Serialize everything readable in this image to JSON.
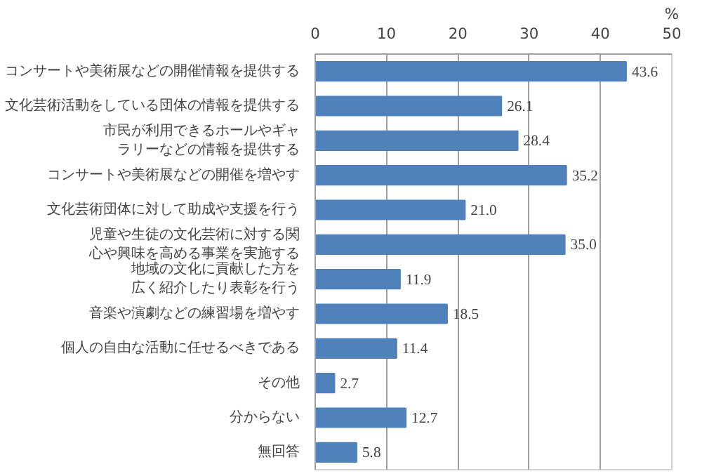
{
  "chart_data": {
    "type": "bar",
    "orientation": "horizontal",
    "xlabel": "%",
    "categories": [
      "コンサートや美術展などの開催情報を提供する",
      "文化芸術活動をしている団体の情報を提供する",
      "市民が利用できるホールやギャラリーなどの情報を提供する",
      "コンサートや美術展などの開催を増やす",
      "文化芸術団体に対して助成や支援を行う",
      "児童や生徒の文化芸術に対する関心や興味を高める事業を実施する",
      "地域の文化に貢献した方を広く紹介したり表彰を行う",
      "音楽や演劇などの練習場を増やす",
      "個人の自由な活動に任せるべきである",
      "その他",
      "分からない",
      "無回答"
    ],
    "values": [
      43.6,
      26.1,
      28.4,
      35.2,
      21.0,
      35.0,
      11.9,
      18.5,
      11.4,
      2.7,
      12.7,
      5.8
    ],
    "value_labels": [
      "43.6",
      "26.1",
      "28.4",
      "35.2",
      "21.0",
      "35.0",
      "11.9",
      "18.5",
      "11.4",
      "2.7",
      "12.7",
      "5.8"
    ],
    "color": "#4f81bd",
    "xlim": [
      0,
      50
    ],
    "xticks": [
      0,
      10,
      20,
      30,
      40,
      50
    ],
    "grid": "x"
  }
}
